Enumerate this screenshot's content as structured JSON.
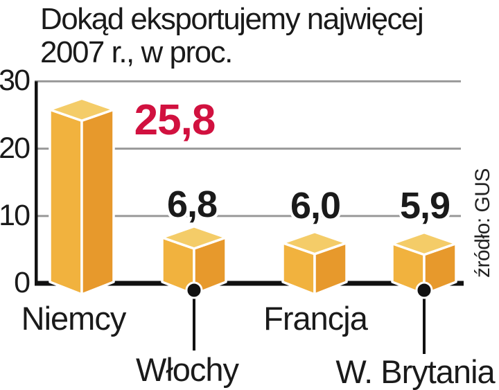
{
  "title": {
    "line1": "Dokąd eksportujemy najwięcej",
    "line2": "2007 r., w proc."
  },
  "source": "źródło: GUS",
  "colors": {
    "bar_top": "#f4cc68",
    "bar_left": "#f1b23e",
    "bar_right": "#e7992c",
    "edge_white": "#ffffff",
    "highlight_value": "#d1113f",
    "value_black": "#1a1a1a",
    "grid_gray": "#999999",
    "axis_black": "#111111"
  },
  "chart_data": {
    "type": "bar",
    "title": "Dokąd eksportujemy najwięcej 2007 r., w proc.",
    "categories": [
      "Niemcy",
      "Włochy",
      "Francja",
      "W. Brytania"
    ],
    "values": [
      25.8,
      6.8,
      6.0,
      5.9
    ],
    "value_labels": [
      "25,8",
      "6,8",
      "6,0",
      "5,9"
    ],
    "value_colors": [
      "#d1113f",
      "#1a1a1a",
      "#1a1a1a",
      "#1a1a1a"
    ],
    "ylim": [
      0,
      30
    ],
    "yticks": [
      30,
      20,
      10,
      0
    ],
    "ytick_labels": [
      "30",
      "20",
      "10",
      "0"
    ],
    "grid": true,
    "legend": false,
    "style": "3d-orange-cubes",
    "source": "źródło: GUS"
  }
}
